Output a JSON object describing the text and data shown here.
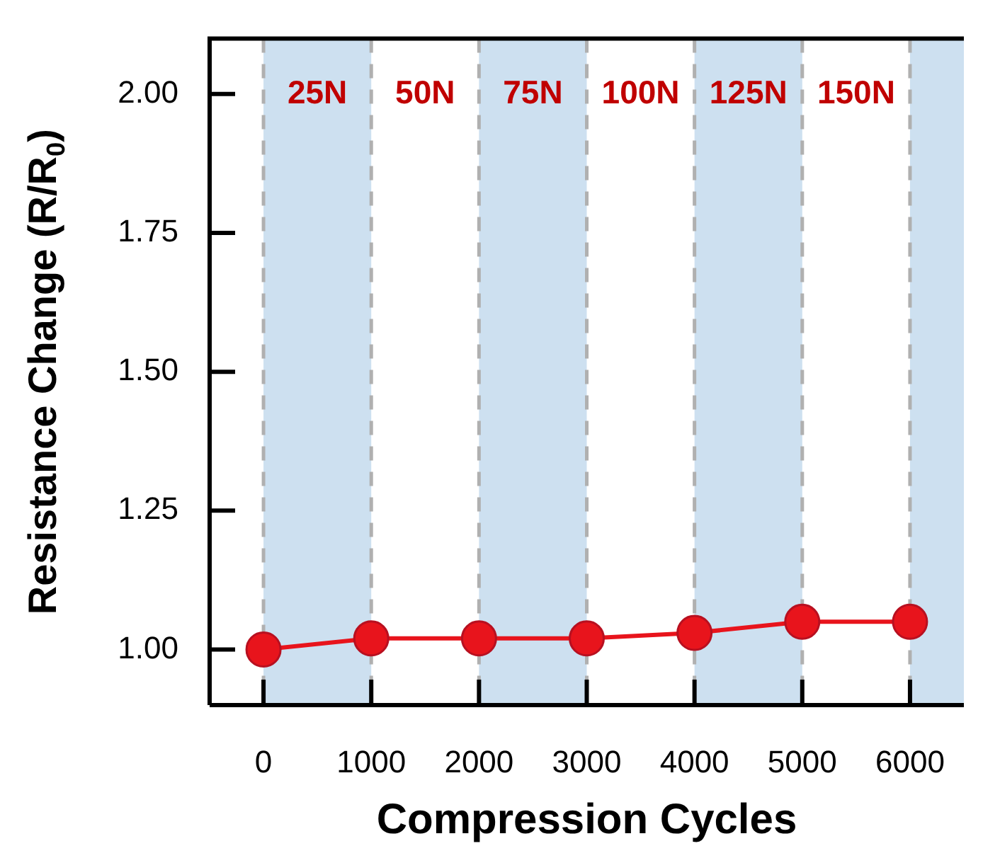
{
  "chart_data": {
    "type": "line",
    "xlabel": "Compression Cycles",
    "ylabel": "Resistance Change (R/R$_{0}$)",
    "x": [
      0,
      1000,
      2000,
      3000,
      4000,
      5000,
      6000
    ],
    "series": [
      {
        "color": "#e8141c",
        "values": [
          1.0,
          1.02,
          1.02,
          1.02,
          1.03,
          1.05,
          1.05
        ]
      }
    ],
    "xlim": [
      -500,
      6500
    ],
    "xticks": [
      0,
      1000,
      2000,
      3000,
      4000,
      5000,
      6000
    ],
    "ylim": [
      0.9,
      2.1
    ],
    "yticks": [
      {
        "value": 1,
        "label": "1.00"
      },
      {
        "value": 1.25,
        "label": "1.25"
      },
      {
        "value": 1.5,
        "label": "1.50"
      },
      {
        "value": 1.75,
        "label": "1.75"
      },
      {
        "value": 2,
        "label": "2.00"
      }
    ],
    "bands": [
      {
        "axis": "x",
        "from": 0,
        "to": 1000,
        "color": "#cde0f0"
      },
      {
        "axis": "x",
        "from": 2000,
        "to": 3000,
        "color": "#cde0f0"
      },
      {
        "axis": "x",
        "from": 4000,
        "to": 5000,
        "color": "#cde0f0"
      },
      {
        "axis": "x",
        "from": 6000,
        "to": 6500,
        "color": "#cde0f0"
      }
    ],
    "ref_lines": [
      {
        "axis": "x",
        "value": 0,
        "color": "#b0b0b0",
        "line_style": "dashed"
      },
      {
        "axis": "x",
        "value": 1000,
        "color": "#b0b0b0",
        "line_style": "dashed"
      },
      {
        "axis": "x",
        "value": 2000,
        "color": "#b0b0b0",
        "line_style": "dashed"
      },
      {
        "axis": "x",
        "value": 3000,
        "color": "#b0b0b0",
        "line_style": "dashed"
      },
      {
        "axis": "x",
        "value": 4000,
        "color": "#b0b0b0",
        "line_style": "dashed"
      },
      {
        "axis": "x",
        "value": 5000,
        "color": "#b0b0b0",
        "line_style": "dashed"
      },
      {
        "axis": "x",
        "value": 6000,
        "color": "#b0b0b0",
        "line_style": "dashed"
      }
    ],
    "annotations": [
      "25N",
      "50N",
      "75N",
      "100N",
      "125N",
      "150N"
    ],
    "marker": "circle",
    "line_style": "solid",
    "grid": false,
    "legend": false
  }
}
